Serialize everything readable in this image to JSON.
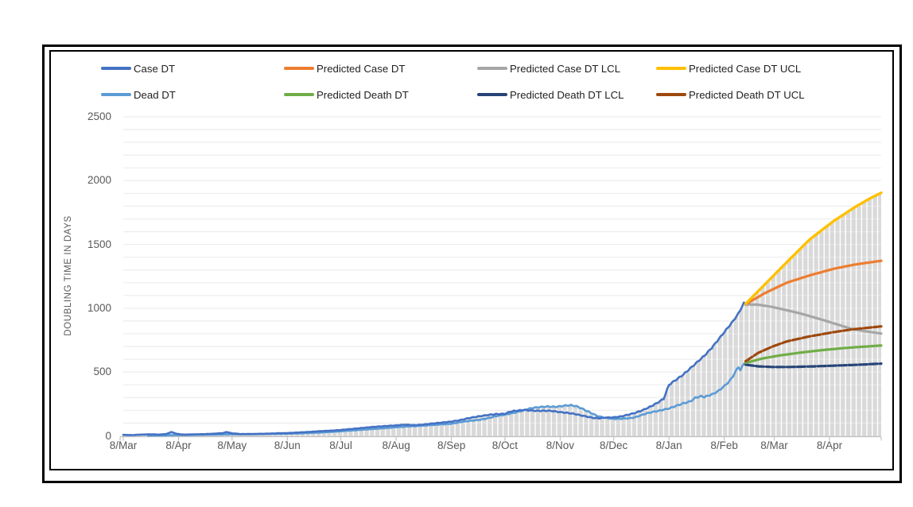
{
  "chart_data": {
    "type": "line",
    "title": "",
    "ylabel": "DOUBLING TIME IN DAYS",
    "xlabel": "",
    "ylim": [
      0,
      2500
    ],
    "y_ticks": [
      0,
      500,
      1000,
      1500,
      2000,
      2500
    ],
    "minor_grid_step": 100,
    "grid": true,
    "legend_position": "top",
    "x_tick_labels": [
      "8/Mar",
      "8/Apr",
      "8/May",
      "8/Jun",
      "8/Jul",
      "8/Aug",
      "8/Sep",
      "8/Oct",
      "8/Nov",
      "8/Dec",
      "8/Jan",
      "8/Feb",
      "8/Mar",
      "8/Apr"
    ],
    "x_tick_days": [
      0,
      31,
      61,
      92,
      122,
      153,
      184,
      214,
      245,
      275,
      306,
      337,
      365,
      396
    ],
    "x_start_label": "8/Mar",
    "x_total_days": 425,
    "prediction_fork_day": 349,
    "area_fill": {
      "color": "#D9D9D9",
      "stripe_color": "#FFFFFF",
      "stripe_period_days": 3
    },
    "axis_color": "#BFBFBF",
    "gridline_color": "#E9E9E9",
    "legend": [
      {
        "label": "Case DT",
        "color": "#4472C4",
        "row": 0,
        "col": 0
      },
      {
        "label": "Predicted Case DT",
        "color": "#ED7D31",
        "row": 0,
        "col": 1
      },
      {
        "label": "Predicted Case DT LCL",
        "color": "#A6A6A6",
        "row": 0,
        "col": 2
      },
      {
        "label": "Predicted Case DT UCL",
        "color": "#FFC000",
        "row": 0,
        "col": 3
      },
      {
        "label": "Dead DT",
        "color": "#5B9BD5",
        "row": 1,
        "col": 0
      },
      {
        "label": "Predicted Death DT",
        "color": "#70AD47",
        "row": 1,
        "col": 1
      },
      {
        "label": "Predicted Death DT LCL",
        "color": "#264478",
        "row": 1,
        "col": 2
      },
      {
        "label": "Predicted Death DT UCL",
        "color": "#9E480E",
        "row": 1,
        "col": 3
      }
    ],
    "series": [
      {
        "name": "dead-dt",
        "label": "Dead DT",
        "color": "#5B9BD5",
        "width": 2.6,
        "dash": "",
        "jitter": true,
        "points": [
          [
            14,
            2
          ],
          [
            20,
            4
          ],
          [
            30,
            6
          ],
          [
            40,
            8
          ],
          [
            50,
            10
          ],
          [
            60,
            12
          ],
          [
            70,
            13
          ],
          [
            80,
            15
          ],
          [
            92,
            17
          ],
          [
            100,
            20
          ],
          [
            110,
            26
          ],
          [
            122,
            36
          ],
          [
            130,
            44
          ],
          [
            140,
            54
          ],
          [
            148,
            62
          ],
          [
            153,
            68
          ],
          [
            160,
            74
          ],
          [
            166,
            78
          ],
          [
            172,
            84
          ],
          [
            178,
            90
          ],
          [
            184,
            95
          ],
          [
            190,
            110
          ],
          [
            196,
            120
          ],
          [
            200,
            126
          ],
          [
            205,
            140
          ],
          [
            210,
            158
          ],
          [
            214,
            166
          ],
          [
            218,
            178
          ],
          [
            222,
            190
          ],
          [
            226,
            208
          ],
          [
            230,
            220
          ],
          [
            234,
            226
          ],
          [
            238,
            230
          ],
          [
            242,
            227
          ],
          [
            245,
            232
          ],
          [
            248,
            238
          ],
          [
            251,
            240
          ],
          [
            254,
            233
          ],
          [
            257,
            215
          ],
          [
            260,
            195
          ],
          [
            263,
            175
          ],
          [
            266,
            155
          ],
          [
            269,
            145
          ],
          [
            272,
            138
          ],
          [
            275,
            133
          ],
          [
            280,
            135
          ],
          [
            285,
            140
          ],
          [
            288,
            150
          ],
          [
            291,
            165
          ],
          [
            294,
            178
          ],
          [
            297,
            188
          ],
          [
            300,
            196
          ],
          [
            303,
            205
          ],
          [
            306,
            215
          ],
          [
            310,
            235
          ],
          [
            314,
            255
          ],
          [
            318,
            270
          ],
          [
            321,
            300
          ],
          [
            324,
            310
          ],
          [
            326,
            305
          ],
          [
            328,
            315
          ],
          [
            331,
            330
          ],
          [
            334,
            355
          ],
          [
            337,
            390
          ],
          [
            340,
            430
          ],
          [
            342,
            470
          ],
          [
            344,
            520
          ],
          [
            345,
            540
          ],
          [
            346,
            515
          ],
          [
            347,
            540
          ],
          [
            348,
            565
          ],
          [
            349,
            575
          ]
        ]
      },
      {
        "name": "case-dt",
        "label": "Case DT",
        "color": "#4472C4",
        "width": 2.6,
        "dash": "",
        "jitter": true,
        "points": [
          [
            0,
            8
          ],
          [
            5,
            6
          ],
          [
            10,
            10
          ],
          [
            15,
            12
          ],
          [
            20,
            10
          ],
          [
            24,
            14
          ],
          [
            27,
            30
          ],
          [
            30,
            16
          ],
          [
            34,
            10
          ],
          [
            40,
            12
          ],
          [
            46,
            14
          ],
          [
            52,
            18
          ],
          [
            56,
            22
          ],
          [
            58,
            30
          ],
          [
            61,
            20
          ],
          [
            66,
            14
          ],
          [
            72,
            15
          ],
          [
            80,
            17
          ],
          [
            86,
            20
          ],
          [
            92,
            22
          ],
          [
            98,
            26
          ],
          [
            105,
            32
          ],
          [
            112,
            38
          ],
          [
            118,
            42
          ],
          [
            122,
            46
          ],
          [
            128,
            54
          ],
          [
            134,
            62
          ],
          [
            140,
            70
          ],
          [
            146,
            76
          ],
          [
            153,
            82
          ],
          [
            158,
            88
          ],
          [
            163,
            84
          ],
          [
            168,
            88
          ],
          [
            173,
            96
          ],
          [
            178,
            103
          ],
          [
            184,
            112
          ],
          [
            189,
            124
          ],
          [
            194,
            140
          ],
          [
            199,
            152
          ],
          [
            204,
            163
          ],
          [
            209,
            170
          ],
          [
            214,
            173
          ],
          [
            217,
            190
          ],
          [
            220,
            197
          ],
          [
            224,
            202
          ],
          [
            228,
            200
          ],
          [
            232,
            196
          ],
          [
            236,
            197
          ],
          [
            240,
            196
          ],
          [
            245,
            186
          ],
          [
            249,
            180
          ],
          [
            253,
            172
          ],
          [
            257,
            160
          ],
          [
            261,
            148
          ],
          [
            264,
            140
          ],
          [
            267,
            138
          ],
          [
            270,
            143
          ],
          [
            275,
            145
          ],
          [
            279,
            152
          ],
          [
            283,
            165
          ],
          [
            287,
            180
          ],
          [
            291,
            200
          ],
          [
            295,
            225
          ],
          [
            299,
            255
          ],
          [
            303,
            290
          ],
          [
            306,
            400
          ],
          [
            310,
            440
          ],
          [
            314,
            480
          ],
          [
            318,
            530
          ],
          [
            322,
            580
          ],
          [
            326,
            630
          ],
          [
            330,
            690
          ],
          [
            334,
            760
          ],
          [
            338,
            830
          ],
          [
            342,
            900
          ],
          [
            345,
            960
          ],
          [
            347,
            1015
          ],
          [
            348,
            1040
          ],
          [
            349,
            1030
          ]
        ]
      },
      {
        "name": "predicted-case-dt-lcl",
        "label": "Predicted Case DT LCL",
        "color": "#A6A6A6",
        "width": 3.2,
        "dash": "",
        "jitter": false,
        "points": [
          [
            349,
            1030
          ],
          [
            356,
            1028
          ],
          [
            364,
            1010
          ],
          [
            372,
            985
          ],
          [
            380,
            958
          ],
          [
            390,
            918
          ],
          [
            400,
            875
          ],
          [
            408,
            840
          ],
          [
            416,
            820
          ],
          [
            425,
            802
          ]
        ]
      },
      {
        "name": "predicted-case-dt",
        "label": "Predicted Case DT",
        "color": "#ED7D31",
        "width": 3.2,
        "dash": "",
        "jitter": false,
        "points": [
          [
            349,
            1032
          ],
          [
            360,
            1120
          ],
          [
            372,
            1200
          ],
          [
            385,
            1258
          ],
          [
            398,
            1308
          ],
          [
            410,
            1342
          ],
          [
            425,
            1372
          ]
        ]
      },
      {
        "name": "predicted-case-dt-ucl",
        "label": "Predicted Case DT UCL",
        "color": "#FFC000",
        "width": 3.4,
        "dash": "",
        "jitter": false,
        "points": [
          [
            349,
            1035
          ],
          [
            360,
            1190
          ],
          [
            372,
            1360
          ],
          [
            385,
            1540
          ],
          [
            398,
            1680
          ],
          [
            410,
            1790
          ],
          [
            418,
            1855
          ],
          [
            425,
            1905
          ]
        ]
      },
      {
        "name": "predicted-death-dt-lcl",
        "label": "Predicted Death DT LCL",
        "color": "#264478",
        "width": 3.2,
        "dash": "10 3",
        "jitter": false,
        "points": [
          [
            349,
            558
          ],
          [
            356,
            545
          ],
          [
            364,
            540
          ],
          [
            374,
            540
          ],
          [
            386,
            544
          ],
          [
            398,
            550
          ],
          [
            410,
            556
          ],
          [
            425,
            566
          ]
        ]
      },
      {
        "name": "predicted-death-dt",
        "label": "Predicted Death DT",
        "color": "#70AD47",
        "width": 3.2,
        "dash": "",
        "jitter": false,
        "points": [
          [
            349,
            572
          ],
          [
            358,
            605
          ],
          [
            368,
            630
          ],
          [
            380,
            653
          ],
          [
            392,
            672
          ],
          [
            404,
            688
          ],
          [
            414,
            698
          ],
          [
            425,
            708
          ]
        ]
      },
      {
        "name": "predicted-death-dt-ucl",
        "label": "Predicted Death DT UCL",
        "color": "#9E480E",
        "width": 3.2,
        "dash": "10 3",
        "jitter": false,
        "points": [
          [
            349,
            585
          ],
          [
            356,
            650
          ],
          [
            364,
            700
          ],
          [
            372,
            740
          ],
          [
            385,
            780
          ],
          [
            398,
            812
          ],
          [
            408,
            833
          ],
          [
            416,
            845
          ],
          [
            425,
            858
          ]
        ]
      }
    ]
  }
}
